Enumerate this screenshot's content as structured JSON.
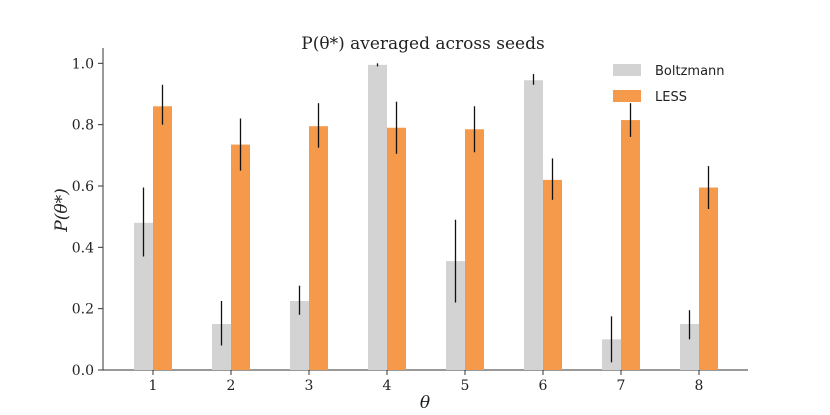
{
  "chart_data": {
    "type": "bar",
    "title": "P(θ*) averaged across seeds",
    "xlabel": "θ",
    "ylabel": "P(θ*)",
    "categories": [
      "1",
      "2",
      "3",
      "4",
      "5",
      "6",
      "7",
      "8"
    ],
    "ylim": [
      0,
      1.05
    ],
    "yticks": [
      "0.0",
      "0.2",
      "0.4",
      "0.6",
      "0.8",
      "1.0"
    ],
    "legend_position": "top-right",
    "series": [
      {
        "name": "Boltzmann",
        "color": "#d3d3d3",
        "values": [
          0.48,
          0.15,
          0.225,
          0.995,
          0.355,
          0.945,
          0.1,
          0.15
        ],
        "err_low": [
          0.37,
          0.08,
          0.18,
          0.99,
          0.22,
          0.93,
          0.025,
          0.1
        ],
        "err_high": [
          0.595,
          0.225,
          0.275,
          1.0,
          0.49,
          0.965,
          0.175,
          0.195
        ]
      },
      {
        "name": "LESS",
        "color": "#f5994a",
        "values": [
          0.86,
          0.735,
          0.795,
          0.79,
          0.785,
          0.62,
          0.815,
          0.595
        ],
        "err_low": [
          0.8,
          0.65,
          0.725,
          0.705,
          0.71,
          0.555,
          0.76,
          0.525
        ],
        "err_high": [
          0.93,
          0.82,
          0.87,
          0.875,
          0.86,
          0.69,
          0.87,
          0.665
        ]
      }
    ]
  }
}
